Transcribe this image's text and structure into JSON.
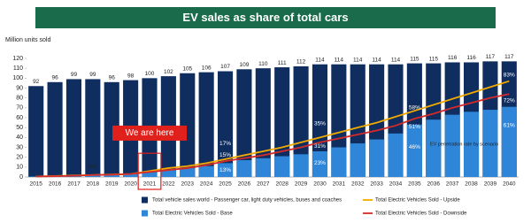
{
  "chart_data": {
    "type": "bar",
    "title": "EV sales as share of total cars",
    "y_axis_label": "Million units sold",
    "categories": [
      "2015",
      "2016",
      "2017",
      "2018",
      "2019",
      "2020",
      "2021",
      "2022",
      "2023",
      "2024",
      "2025",
      "2026",
      "2027",
      "2028",
      "2029",
      "2030",
      "2031",
      "2032",
      "2033",
      "2034",
      "2035",
      "2036",
      "2037",
      "2038",
      "2039",
      "2040"
    ],
    "ylim": [
      0,
      120
    ],
    "yticks": [
      0,
      10,
      20,
      30,
      40,
      50,
      60,
      70,
      80,
      90,
      100,
      110,
      120
    ],
    "grid": false,
    "series": [
      {
        "name": "Total vehicle sales world - Passenger car, light duty vehicles, buses and coaches",
        "type": "bar",
        "color": "#0f2d5e",
        "values": [
          92,
          96,
          99,
          99,
          96,
          98,
          100,
          102,
          105,
          106,
          107,
          109,
          110,
          111,
          112,
          114,
          114,
          114,
          114,
          114,
          115,
          115,
          116,
          116,
          117,
          117
        ]
      },
      {
        "name": "Total Electric Vehicles Sold - Upside",
        "type": "line",
        "color": "#f2a900",
        "values": [
          0.5,
          1,
          1.5,
          2,
          2.5,
          3,
          6,
          9,
          11,
          14,
          18,
          22,
          26,
          30,
          35,
          40,
          45,
          50,
          55,
          61,
          67,
          73,
          79,
          85,
          91,
          97
        ]
      },
      {
        "name": "Total Electric Vehicles Sold - Base",
        "type": "bar",
        "color": "#2f86d8",
        "values": [
          0.5,
          0.7,
          1,
          2,
          2,
          3,
          5,
          7,
          9,
          11,
          14,
          17,
          19,
          21,
          23,
          26,
          30,
          34,
          38,
          44,
          53,
          58,
          63,
          66,
          68,
          71
        ]
      },
      {
        "name": "Total Electric Vehicles Sold - Downside",
        "type": "line",
        "color": "#d42a2a",
        "values": [
          0.5,
          0.8,
          1.2,
          2,
          2.3,
          3,
          5,
          7,
          9,
          12,
          16,
          19,
          22,
          26,
          30,
          35,
          39,
          43,
          47,
          52,
          59,
          64,
          70,
          75,
          80,
          84
        ]
      }
    ],
    "annotations": [
      "2%",
      "17%",
      "15%",
      "13%",
      "35%",
      "31%",
      "23%",
      "58%",
      "51%",
      "46%",
      "83%",
      "72%",
      "61%"
    ],
    "callout": "We are here",
    "scenario_note": "EV penetration rate by scenario"
  }
}
